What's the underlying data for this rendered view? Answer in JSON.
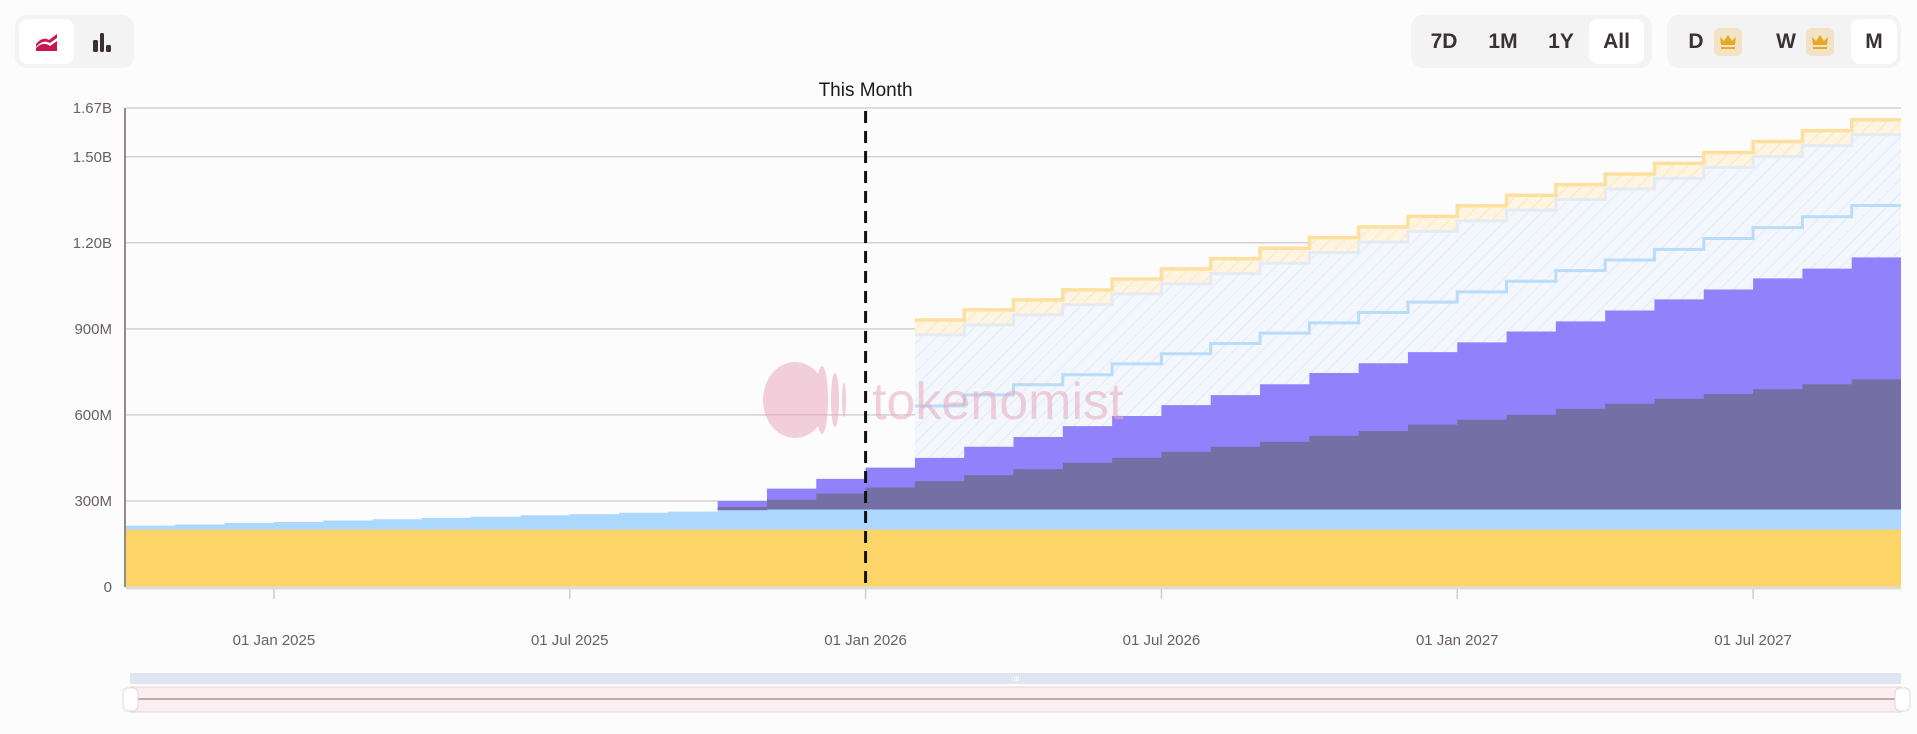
{
  "controls": {
    "chart_types": [
      {
        "icon": "area-chart-icon",
        "active": true
      },
      {
        "icon": "bar-chart-icon",
        "active": false
      }
    ],
    "ranges": [
      {
        "label": "7D",
        "active": false
      },
      {
        "label": "1M",
        "active": false
      },
      {
        "label": "1Y",
        "active": false
      },
      {
        "label": "All",
        "active": true
      }
    ],
    "granularity": [
      {
        "label": "D",
        "premium": true,
        "active": false
      },
      {
        "label": "W",
        "premium": true,
        "active": false
      },
      {
        "label": "M",
        "premium": false,
        "active": true
      }
    ]
  },
  "watermark": "tokenomist",
  "chart_data": {
    "type": "area",
    "step": true,
    "stacked": true,
    "start_month": "2024-10",
    "end_month": "2027-10",
    "ylim": [
      0,
      1670000000
    ],
    "y_ticks": [
      "0",
      "300M",
      "600M",
      "900M",
      "1.20B",
      "1.50B",
      "1.67B"
    ],
    "y_tick_values": [
      0,
      300,
      600,
      900,
      1200,
      1500,
      1670
    ],
    "y_unit": "M",
    "x_ticks": [
      "01 Jan 2025",
      "01 Jul 2025",
      "01 Jan 2026",
      "01 Jul 2026",
      "01 Jan 2027",
      "01 Jul 2027"
    ],
    "x_tick_months": [
      "2025-01",
      "2025-07",
      "2026-01",
      "2026-07",
      "2027-01",
      "2027-07"
    ],
    "grid": true,
    "marker": {
      "label": "This Month",
      "month": "2026-01"
    },
    "colors": {
      "yellow": "#fdd468",
      "light_blue": "#acd8fe",
      "purple": "#9181fb",
      "dark_purple": "#7470a6",
      "projected_blue": "#b9dcf8",
      "projected_yellow": "#fde0a0"
    },
    "series": [
      {
        "color": "yellow",
        "start_index": 0,
        "values": [
          200,
          200,
          200,
          200,
          200,
          200,
          200,
          200,
          200,
          200,
          200,
          200,
          200,
          200,
          200,
          200,
          200,
          200,
          200,
          200,
          200,
          200,
          200,
          200,
          200,
          200,
          200,
          200,
          200,
          200,
          200,
          200,
          200,
          200,
          200,
          200
        ]
      },
      {
        "color": "light_blue",
        "start_index": 0,
        "values": [
          214,
          218,
          223,
          227,
          232,
          236,
          241,
          245,
          250,
          254,
          259,
          263,
          268,
          270,
          270,
          270,
          270,
          270,
          270,
          270,
          270,
          270,
          270,
          270,
          270,
          270,
          270,
          270,
          270,
          270,
          270,
          270,
          270,
          270,
          270,
          270
        ]
      },
      {
        "color": "purple",
        "start_index": 12,
        "values": [
          300,
          343,
          377,
          416,
          450,
          489,
          523,
          561,
          596,
          634,
          669,
          707,
          746,
          780,
          819,
          853,
          891,
          926,
          964,
          1003,
          1037,
          1076,
          1110,
          1149
        ]
      },
      {
        "color": "dark_purple",
        "start_index": 12,
        "values": [
          279,
          304,
          326,
          347,
          369,
          390,
          411,
          433,
          450,
          471,
          489,
          506,
          527,
          544,
          566,
          583,
          600,
          621,
          639,
          656,
          673,
          690,
          707,
          724
        ]
      },
      {
        "color": "projected_blue",
        "projected": true,
        "start_index": 16,
        "values": [
          631,
          670,
          705,
          740,
          778,
          813,
          849,
          885,
          921,
          957,
          993,
          1029,
          1066,
          1103,
          1140,
          1177,
          1215,
          1253,
          1291,
          1330
        ]
      },
      {
        "color": "projected_yellow",
        "projected": true,
        "start_index": 16,
        "values": [
          931,
          966,
          1001,
          1036,
          1074,
          1109,
          1145,
          1181,
          1218,
          1255,
          1292,
          1329,
          1366,
          1403,
          1440,
          1477,
          1515,
          1553,
          1591,
          1629
        ]
      }
    ]
  }
}
